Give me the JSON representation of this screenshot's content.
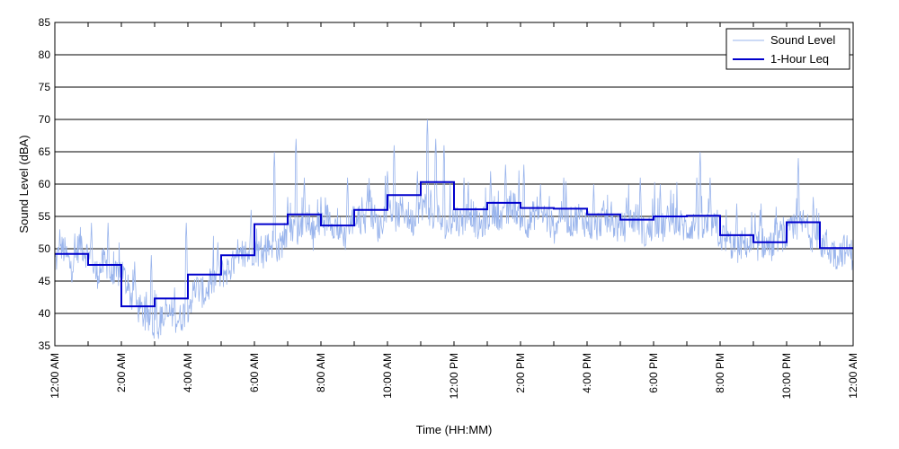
{
  "chart_data": {
    "type": "line",
    "xlabel": "Time (HH:MM)",
    "ylabel": "Sound Level (dBA)",
    "xlim": [
      0,
      24
    ],
    "ylim": [
      35,
      85
    ],
    "y_ticks": [
      35,
      40,
      45,
      50,
      55,
      60,
      65,
      70,
      75,
      80,
      85
    ],
    "x_tick_labels": [
      "12:00 AM",
      "2:00 AM",
      "4:00 AM",
      "6:00 AM",
      "8:00 AM",
      "10:00 AM",
      "12:00 PM",
      "2:00 PM",
      "4:00 PM",
      "6:00 PM",
      "8:00 PM",
      "10:00 PM",
      "12:00 AM"
    ],
    "grid": "horizontal",
    "legend_position": "top-right",
    "series": [
      {
        "name": "Sound Level",
        "color": "#99b4ec",
        "style": "thin",
        "x_hours": [
          0,
          0.25,
          0.5,
          0.75,
          1,
          1.25,
          1.5,
          1.75,
          2,
          2.25,
          2.5,
          2.75,
          3,
          3.25,
          3.5,
          3.75,
          4,
          4.25,
          4.5,
          4.75,
          5,
          5.25,
          5.5,
          5.75,
          6,
          6.25,
          6.5,
          6.75,
          7,
          7.25,
          7.5,
          7.75,
          8,
          8.25,
          8.5,
          8.75,
          9,
          9.25,
          9.5,
          9.75,
          10,
          10.25,
          10.5,
          10.75,
          11,
          11.25,
          11.5,
          11.75,
          12,
          12.25,
          12.5,
          12.75,
          13,
          13.25,
          13.5,
          13.75,
          14,
          14.25,
          14.5,
          14.75,
          15,
          15.25,
          15.5,
          15.75,
          16,
          16.25,
          16.5,
          16.75,
          17,
          17.25,
          17.5,
          17.75,
          18,
          18.25,
          18.5,
          18.75,
          19,
          19.25,
          19.5,
          19.75,
          20,
          20.25,
          20.5,
          20.75,
          21,
          21.25,
          21.5,
          21.75,
          22,
          22.25,
          22.5,
          22.75,
          23,
          23.25,
          23.5,
          23.75,
          24
        ],
        "values": [
          48,
          50,
          47,
          51,
          49,
          46,
          48,
          45,
          47,
          43,
          41,
          39,
          38,
          39,
          40,
          39,
          41,
          44,
          43,
          45,
          46,
          47,
          48,
          49,
          50,
          49,
          51,
          50,
          53,
          52,
          54,
          52,
          54,
          55,
          53,
          52,
          55,
          54,
          56,
          53,
          57,
          55,
          56,
          54,
          57,
          56,
          55,
          53,
          55,
          54,
          56,
          53,
          55,
          56,
          54,
          57,
          55,
          54,
          56,
          55,
          53,
          56,
          54,
          55,
          54,
          53,
          55,
          54,
          53,
          54,
          55,
          52,
          54,
          53,
          55,
          54,
          53,
          54,
          53,
          54,
          52,
          51,
          50,
          51,
          50,
          51,
          50,
          52,
          52,
          53,
          54,
          52,
          51,
          50,
          49,
          50,
          49
        ],
        "spikes": [
          [
            0.15,
            53
          ],
          [
            0.3,
            42
          ],
          [
            0.8,
            52
          ],
          [
            1.1,
            54
          ],
          [
            1.6,
            54
          ],
          [
            2.2,
            46
          ],
          [
            2.4,
            48
          ],
          [
            2.9,
            49
          ],
          [
            3.05,
            43
          ],
          [
            3.6,
            44
          ],
          [
            3.95,
            54
          ],
          [
            4.9,
            51
          ],
          [
            5.9,
            56
          ],
          [
            6.6,
            65
          ],
          [
            7.0,
            58
          ],
          [
            7.25,
            67
          ],
          [
            7.5,
            61
          ],
          [
            8.0,
            58
          ],
          [
            8.8,
            61
          ],
          [
            9.4,
            60
          ],
          [
            10.0,
            62
          ],
          [
            10.2,
            66
          ],
          [
            10.9,
            62
          ],
          [
            11.2,
            70
          ],
          [
            11.45,
            67
          ],
          [
            11.7,
            66
          ],
          [
            12.3,
            61
          ],
          [
            13.1,
            62
          ],
          [
            13.55,
            63
          ],
          [
            14.1,
            63
          ],
          [
            14.6,
            60
          ],
          [
            15.3,
            61
          ],
          [
            16.2,
            60
          ],
          [
            17.6,
            61
          ],
          [
            18.2,
            60
          ],
          [
            19.3,
            61
          ],
          [
            19.4,
            65
          ],
          [
            19.7,
            61
          ],
          [
            20.5,
            57
          ],
          [
            21.2,
            56
          ],
          [
            22.35,
            64
          ],
          [
            22.8,
            58
          ],
          [
            23.2,
            53
          ]
        ]
      },
      {
        "name": "1-Hour Leq",
        "color": "#0000cc",
        "style": "step",
        "values": [
          49.2,
          47.5,
          41.1,
          42.3,
          46.0,
          49.0,
          53.8,
          55.3,
          53.6,
          56.0,
          58.3,
          60.3,
          56.1,
          57.1,
          56.3,
          56.2,
          55.3,
          54.5,
          55.0,
          55.1,
          52.1,
          51.0,
          54.1,
          50.1
        ]
      }
    ]
  }
}
